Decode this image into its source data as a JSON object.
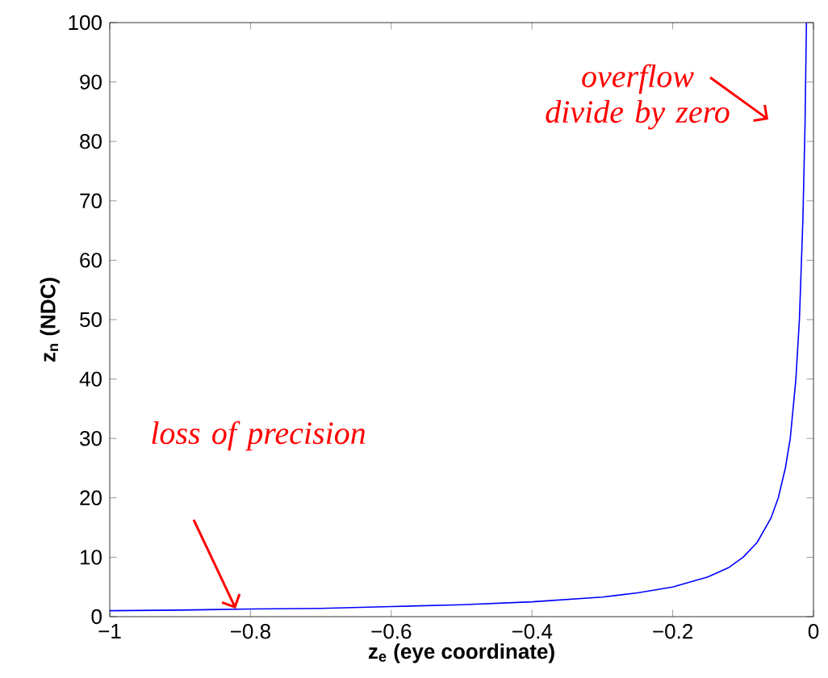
{
  "chart_data": {
    "type": "line",
    "xlabel": "z$_{e}$ (eye coordinate)",
    "ylabel": "z$_{n}$ (NDC)",
    "x": [
      -1,
      -0.9,
      -0.8,
      -0.7,
      -0.6,
      -0.5,
      -0.4,
      -0.3,
      -0.25,
      -0.2,
      -0.15,
      -0.12,
      -0.1,
      -0.08,
      -0.06,
      -0.05,
      -0.04,
      -0.033,
      -0.025,
      -0.02,
      -0.015,
      -0.012,
      -0.01
    ],
    "series": [
      {
        "color": "#0000ff",
        "values": [
          1,
          1.1,
          1.3,
          1.4,
          1.7,
          2,
          2.5,
          3.3,
          4,
          5,
          6.7,
          8.3,
          10,
          12.5,
          16.7,
          20,
          25,
          30,
          40,
          50,
          67,
          83,
          100
        ]
      }
    ],
    "xlim": [
      -1,
      0
    ],
    "ylim": [
      0,
      100
    ],
    "xticks": [
      {
        "value": -1,
        "label": "−1"
      },
      {
        "value": -0.8,
        "label": "−0.8"
      },
      {
        "value": -0.6,
        "label": "−0.6"
      },
      {
        "value": -0.4,
        "label": "−0.4"
      },
      {
        "value": -0.2,
        "label": "−0.2"
      },
      0
    ],
    "yticks": [
      0,
      10,
      20,
      30,
      40,
      50,
      60,
      70,
      80,
      90,
      100
    ],
    "annotations": [
      "overflow divide by zero",
      "loss of precision"
    ],
    "grid": false,
    "marker": "none",
    "line_style": "solid"
  }
}
